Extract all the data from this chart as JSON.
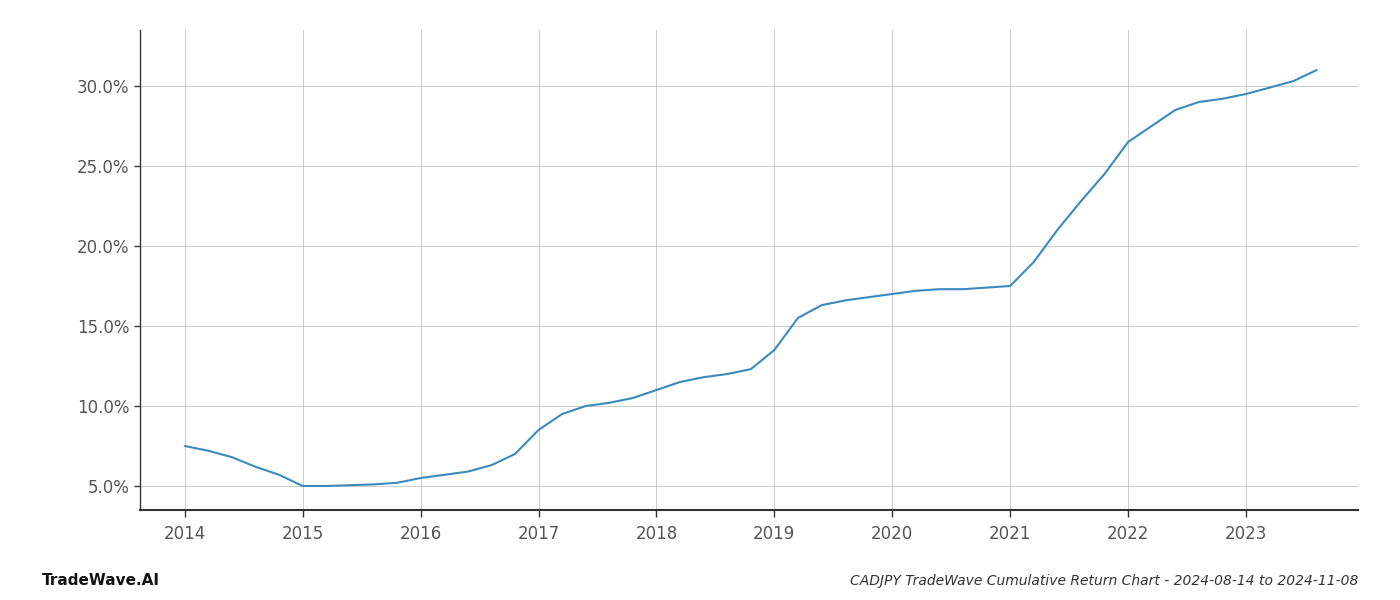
{
  "title": "CADJPY TradeWave Cumulative Return Chart - 2024-08-14 to 2024-11-08",
  "watermark": "TradeWave.AI",
  "line_color": "#3a8abf",
  "background_color": "#ffffff",
  "grid_color": "#cccccc",
  "x_values": [
    2014.0,
    2014.2,
    2014.4,
    2014.6,
    2014.8,
    2015.0,
    2015.2,
    2015.4,
    2015.6,
    2015.8,
    2016.0,
    2016.2,
    2016.4,
    2016.6,
    2016.8,
    2017.0,
    2017.2,
    2017.4,
    2017.6,
    2017.8,
    2018.0,
    2018.2,
    2018.4,
    2018.6,
    2018.8,
    2019.0,
    2019.2,
    2019.4,
    2019.6,
    2019.8,
    2020.0,
    2020.2,
    2020.4,
    2020.6,
    2020.8,
    2021.0,
    2021.2,
    2021.4,
    2021.6,
    2021.8,
    2022.0,
    2022.2,
    2022.4,
    2022.6,
    2022.8,
    2023.0,
    2023.2,
    2023.4,
    2023.6
  ],
  "y_values": [
    7.5,
    7.2,
    6.8,
    6.2,
    5.7,
    5.0,
    5.0,
    5.05,
    5.1,
    5.2,
    5.5,
    5.7,
    5.9,
    6.3,
    7.0,
    8.5,
    9.5,
    10.0,
    10.2,
    10.5,
    11.0,
    11.5,
    11.8,
    12.0,
    12.3,
    13.5,
    15.5,
    16.3,
    16.6,
    16.8,
    17.0,
    17.2,
    17.3,
    17.3,
    17.4,
    17.5,
    19.0,
    21.0,
    22.8,
    24.5,
    26.5,
    27.5,
    28.5,
    29.0,
    29.2,
    29.5,
    29.9,
    30.3,
    31.0
  ],
  "xlim": [
    2013.62,
    2023.95
  ],
  "ylim": [
    3.5,
    33.5
  ],
  "xtick_labels": [
    "2014",
    "2015",
    "2016",
    "2017",
    "2018",
    "2019",
    "2020",
    "2021",
    "2022",
    "2023"
  ],
  "xtick_positions": [
    2014,
    2015,
    2016,
    2017,
    2018,
    2019,
    2020,
    2021,
    2022,
    2023
  ],
  "ytick_values": [
    5.0,
    10.0,
    15.0,
    20.0,
    25.0,
    30.0
  ],
  "line_width": 1.5,
  "title_fontsize": 10,
  "tick_fontsize": 12,
  "watermark_fontsize": 11
}
